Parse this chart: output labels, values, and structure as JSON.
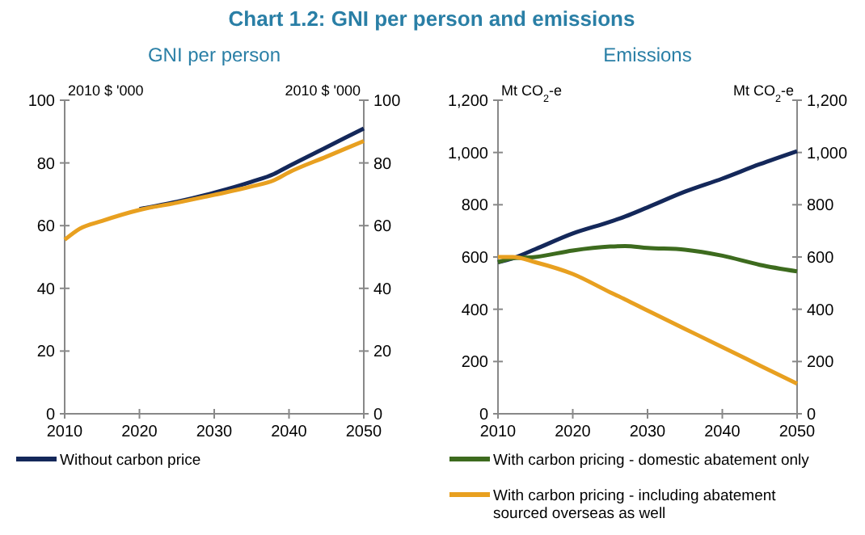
{
  "chart_data": [
    {
      "type": "line",
      "title": "Chart 1.2: GNI per person and emissions",
      "subtitle": "GNI per person",
      "ylabel": "2010 $ '000",
      "y2label": "2010 $ '000",
      "x": [
        2010,
        2012,
        2015,
        2020,
        2025,
        2030,
        2035,
        2038,
        2040,
        2045,
        2050
      ],
      "series": [
        {
          "name": "Without carbon price",
          "color": "#14285a",
          "values": [
            null,
            null,
            null,
            65.3,
            67.6,
            70.5,
            74,
            76.5,
            79,
            85,
            91
          ]
        },
        {
          "color": "#e8a020",
          "values": [
            55.5,
            59,
            61.5,
            65,
            67.3,
            69.8,
            72.5,
            74.5,
            77,
            82,
            87
          ]
        }
      ],
      "xlim": [
        2010,
        2050
      ],
      "xticks": [
        2010,
        2020,
        2030,
        2040,
        2050
      ],
      "ylim": [
        0,
        100
      ],
      "yticks": [
        0,
        20,
        40,
        60,
        80,
        100
      ],
      "y2lim": [
        0,
        100
      ],
      "y2ticks": [
        0,
        20,
        40,
        60,
        80,
        100
      ],
      "legend": "bottom",
      "grid": false,
      "marker": "none",
      "line_style": "solid"
    },
    {
      "type": "line",
      "subtitle": "Emissions",
      "ylabel": "Mt CO$_{2}$-e",
      "y2label": "Mt CO$_{2}$-e",
      "x": [
        2010,
        2012,
        2015,
        2020,
        2025,
        2027,
        2030,
        2035,
        2040,
        2045,
        2050
      ],
      "series": [
        {
          "color": "#14285a",
          "values": [
            580,
            595,
            630,
            690,
            735,
            755,
            790,
            850,
            900,
            955,
            1005
          ]
        },
        {
          "name": "With carbon pricing - domestic abatement only",
          "color": "#3d6b1e",
          "values": [
            580,
            595,
            600,
            625,
            640,
            642,
            635,
            628,
            605,
            570,
            545
          ]
        },
        {
          "name": "With carbon pricing - including abatement sourced overseas as well",
          "color": "#e8a020",
          "values": [
            600,
            600,
            580,
            535,
            465,
            438,
            395,
            325,
            255,
            185,
            115
          ]
        }
      ],
      "xlim": [
        2010,
        2050
      ],
      "xticks": [
        2010,
        2020,
        2030,
        2040,
        2050
      ],
      "ylim": [
        0,
        1200
      ],
      "yticks": [
        {
          "value": 0,
          "label": "0"
        },
        {
          "value": 200,
          "label": "200"
        },
        {
          "value": 400,
          "label": "400"
        },
        {
          "value": 600,
          "label": "600"
        },
        {
          "value": 800,
          "label": "800"
        },
        {
          "value": 1000,
          "label": "1,000"
        },
        {
          "value": 1200,
          "label": "1,200"
        }
      ],
      "y2lim": [
        0,
        1200
      ],
      "y2ticks": [
        {
          "value": 0,
          "label": "0"
        },
        {
          "value": 200,
          "label": "200"
        },
        {
          "value": 400,
          "label": "400"
        },
        {
          "value": 600,
          "label": "600"
        },
        {
          "value": 800,
          "label": "800"
        },
        {
          "value": 1000,
          "label": "1,000"
        },
        {
          "value": 1200,
          "label": "1,200"
        }
      ],
      "legend": "bottom",
      "grid": false,
      "marker": "none",
      "line_style": "solid"
    }
  ]
}
